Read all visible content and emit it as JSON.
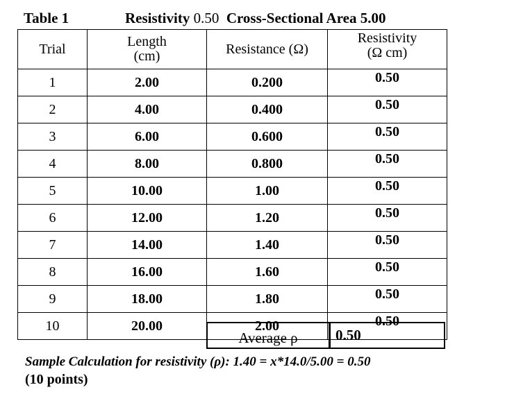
{
  "title": {
    "label": "Table 1",
    "resistivity_label": "Resistivity",
    "resistivity_value": "0.50",
    "area_text": "Cross-Sectional Area 5.00"
  },
  "table": {
    "headers": {
      "trial": "Trial",
      "length_line1": "Length",
      "length_line2": "(cm)",
      "resistance": "Resistance (Ω)",
      "resistivity_line1": "Resistivity",
      "resistivity_line2": "(Ω cm)"
    },
    "rows": [
      {
        "trial": "1",
        "length": "2.00",
        "resistance": "0.200",
        "resistivity": "0.50"
      },
      {
        "trial": "2",
        "length": "4.00",
        "resistance": "0.400",
        "resistivity": "0.50"
      },
      {
        "trial": "3",
        "length": "6.00",
        "resistance": "0.600",
        "resistivity": "0.50"
      },
      {
        "trial": "4",
        "length": "8.00",
        "resistance": "0.800",
        "resistivity": "0.50"
      },
      {
        "trial": "5",
        "length": "10.00",
        "resistance": "1.00",
        "resistivity": "0.50"
      },
      {
        "trial": "6",
        "length": "12.00",
        "resistance": "1.20",
        "resistivity": "0.50"
      },
      {
        "trial": "7",
        "length": "14.00",
        "resistance": "1.40",
        "resistivity": "0.50"
      },
      {
        "trial": "8",
        "length": "16.00",
        "resistance": "1.60",
        "resistivity": "0.50"
      },
      {
        "trial": "9",
        "length": "18.00",
        "resistance": "1.80",
        "resistivity": "0.50"
      },
      {
        "trial": "10",
        "length": "20.00",
        "resistance": "2.00",
        "resistivity": "0.50"
      }
    ]
  },
  "average": {
    "label": "Average ρ",
    "value": "0.50"
  },
  "sample_calculation": "Sample Calculation for resistivity (ρ): 1.40 = x*14.0/5.00 = 0.50",
  "points": "(10 points)"
}
